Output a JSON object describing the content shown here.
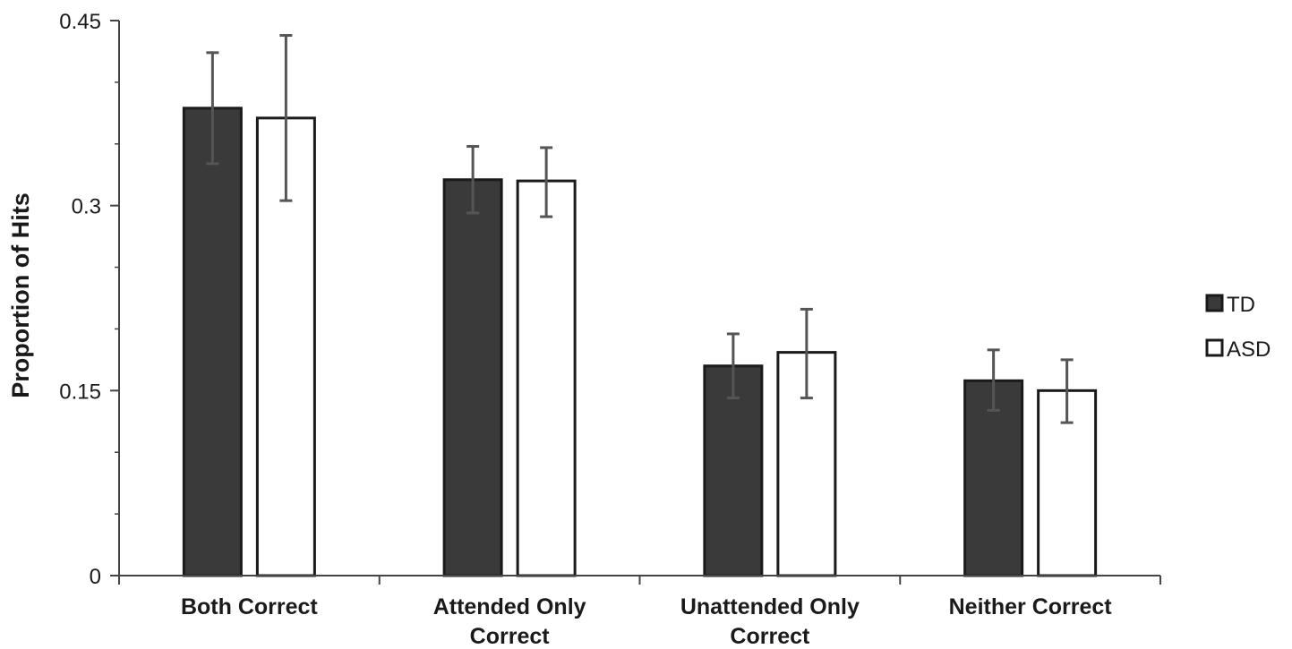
{
  "chart_data": {
    "type": "bar",
    "title": "",
    "xlabel": "",
    "ylabel": "Proportion of Hits",
    "ylim": [
      0,
      0.45
    ],
    "yticks": [
      "0",
      "0.15",
      "0.3",
      "0.45"
    ],
    "minor_ytick_step": 0.05,
    "grid": false,
    "legend_position": "right",
    "categories": [
      [
        "Both Correct"
      ],
      [
        "Attended Only",
        "Correct"
      ],
      [
        "Unattended Only",
        "Correct"
      ],
      [
        "Neither Correct"
      ]
    ],
    "series": [
      {
        "name": "TD",
        "color": "#3a3a3a",
        "values": [
          0.379,
          0.321,
          0.17,
          0.158
        ],
        "error_low": [
          0.334,
          0.294,
          0.144,
          0.134
        ],
        "error_high": [
          0.424,
          0.348,
          0.196,
          0.183
        ]
      },
      {
        "name": "ASD",
        "color": "#ffffff",
        "values": [
          0.371,
          0.32,
          0.181,
          0.15
        ],
        "error_low": [
          0.304,
          0.291,
          0.144,
          0.124
        ],
        "error_high": [
          0.438,
          0.347,
          0.216,
          0.175
        ]
      }
    ]
  }
}
